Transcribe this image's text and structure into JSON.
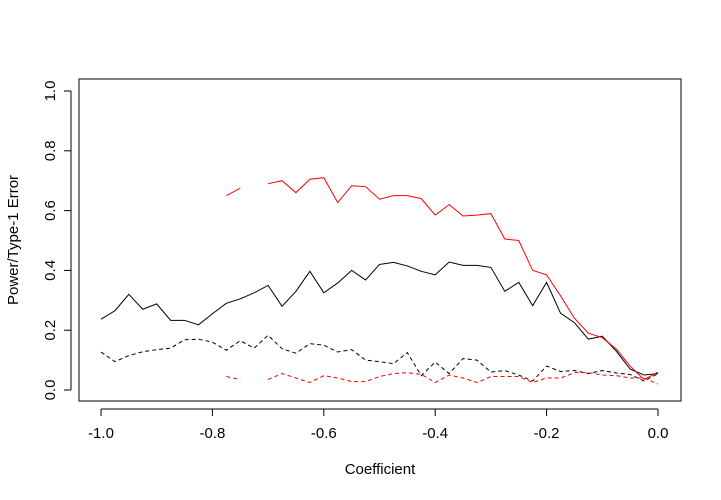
{
  "chart_data": {
    "type": "line",
    "title": "",
    "xlabel": "Coefficient",
    "ylabel": "Power/Type-1 Error",
    "xlim": [
      -1.0,
      0.0
    ],
    "ylim": [
      0.0,
      1.0
    ],
    "xticks": [
      -1.0,
      -0.8,
      -0.6,
      -0.4,
      -0.2,
      0.0
    ],
    "xtick_labels": [
      "-1.0",
      "-0.8",
      "-0.6",
      "-0.4",
      "-0.2",
      "0.0"
    ],
    "yticks": [
      0.0,
      0.2,
      0.4,
      0.6,
      0.8,
      1.0
    ],
    "ytick_labels": [
      "0.0",
      "0.2",
      "0.4",
      "0.6",
      "0.8",
      "1.0"
    ],
    "grid": false,
    "legend": "none",
    "x": [
      -1.0,
      -0.975,
      -0.95,
      -0.925,
      -0.9,
      -0.875,
      -0.85,
      -0.825,
      -0.8,
      -0.775,
      -0.75,
      -0.725,
      -0.7,
      -0.675,
      -0.65,
      -0.625,
      -0.6,
      -0.575,
      -0.55,
      -0.525,
      -0.5,
      -0.475,
      -0.45,
      -0.425,
      -0.4,
      -0.375,
      -0.35,
      -0.325,
      -0.3,
      -0.275,
      -0.25,
      -0.225,
      -0.2,
      -0.175,
      -0.15,
      -0.125,
      -0.1,
      -0.075,
      -0.05,
      -0.025,
      0.0
    ],
    "series": [
      {
        "color": "#000000",
        "dash": "solid",
        "values": [
          0.237,
          0.265,
          0.32,
          0.27,
          0.288,
          0.233,
          0.233,
          0.218,
          0.255,
          0.29,
          0.305,
          0.325,
          0.35,
          0.28,
          0.33,
          0.397,
          0.325,
          0.358,
          0.4,
          0.368,
          0.42,
          0.427,
          0.415,
          0.397,
          0.385,
          0.428,
          0.417,
          0.417,
          0.41,
          0.33,
          0.36,
          0.282,
          0.36,
          0.257,
          0.225,
          0.17,
          0.18,
          0.13,
          0.07,
          0.05,
          0.055
        ]
      },
      {
        "color": "#ff0000",
        "dash": "solid",
        "values": [
          null,
          null,
          null,
          null,
          null,
          null,
          null,
          null,
          null,
          0.65,
          0.675,
          null,
          0.69,
          0.7,
          0.66,
          0.705,
          0.71,
          0.627,
          0.683,
          0.68,
          0.638,
          0.65,
          0.65,
          0.64,
          0.585,
          0.62,
          0.582,
          0.585,
          0.59,
          0.505,
          0.5,
          0.4,
          0.385,
          0.315,
          0.24,
          0.19,
          0.175,
          0.137,
          0.08,
          0.035,
          0.06
        ]
      },
      {
        "color": "#000000",
        "dash": "dashed",
        "values": [
          0.127,
          0.095,
          0.115,
          0.128,
          0.135,
          0.14,
          0.168,
          0.17,
          0.16,
          0.133,
          0.165,
          0.14,
          0.183,
          0.138,
          0.123,
          0.155,
          0.15,
          0.127,
          0.135,
          0.1,
          0.095,
          0.088,
          0.125,
          0.048,
          0.093,
          0.055,
          0.105,
          0.1,
          0.06,
          0.065,
          0.05,
          0.03,
          0.08,
          0.062,
          0.065,
          0.055,
          0.065,
          0.057,
          0.052,
          0.03,
          0.055
        ]
      },
      {
        "color": "#ff0000",
        "dash": "dashed",
        "values": [
          null,
          null,
          null,
          null,
          null,
          null,
          null,
          null,
          null,
          0.045,
          0.035,
          null,
          0.035,
          0.055,
          0.04,
          0.025,
          0.048,
          0.04,
          0.028,
          0.028,
          0.045,
          0.055,
          0.058,
          0.052,
          0.025,
          0.05,
          0.04,
          0.025,
          0.045,
          0.045,
          0.045,
          0.025,
          0.04,
          0.04,
          0.058,
          0.058,
          0.05,
          0.048,
          0.04,
          0.04,
          0.02
        ]
      }
    ]
  }
}
